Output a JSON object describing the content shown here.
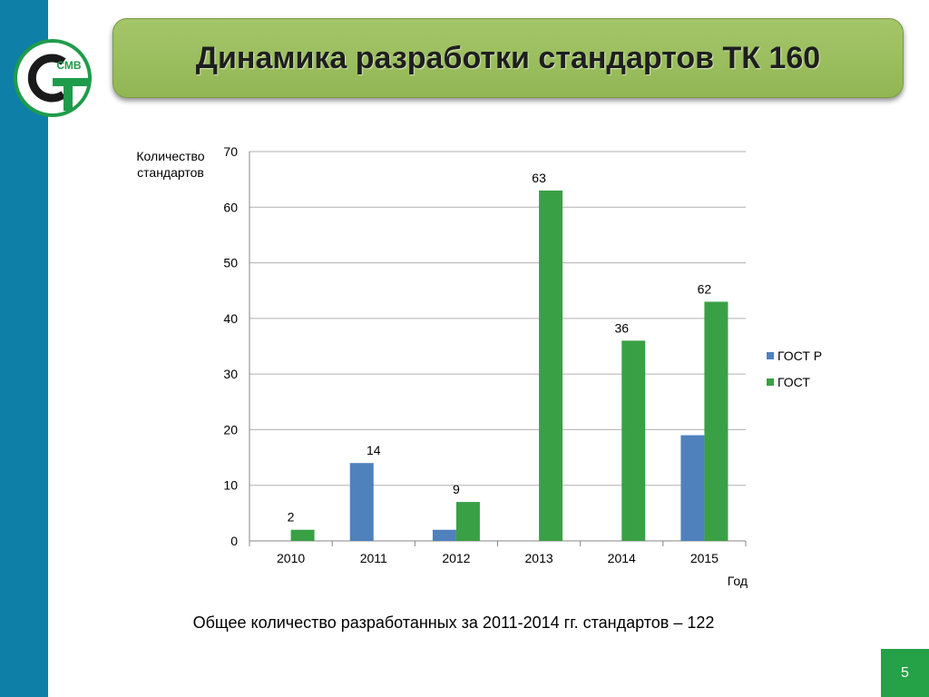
{
  "slide": {
    "title": "Динамика разработки стандартов ТК 160",
    "summary": "Общее количество разработанных за 2011-2014 гг. стандартов – 122",
    "page_number": "5",
    "logo_text": "СМВ"
  },
  "colors": {
    "sidebar": "#0e7fa6",
    "title_box": "#9bbd5b",
    "gost_r": "#4f81bd",
    "gost": "#3aa045",
    "page_box": "#25a147",
    "logo_green": "#1f9c4a"
  },
  "chart_data": {
    "type": "bar",
    "ylabel_lines": [
      "Количество",
      "стандартов"
    ],
    "xlabel": "Год",
    "categories": [
      "2010",
      "2011",
      "2012",
      "2013",
      "2014",
      "2015"
    ],
    "ylim": [
      0,
      70
    ],
    "yticks": [
      0,
      10,
      20,
      30,
      40,
      50,
      60,
      70
    ],
    "grid": true,
    "legend_position": "right",
    "series": [
      {
        "name": "ГОСТ Р",
        "values": [
          0,
          14,
          2,
          0,
          0,
          19
        ]
      },
      {
        "name": "ГОСТ",
        "values": [
          2,
          0,
          7,
          63,
          36,
          43
        ]
      }
    ],
    "data_labels": [
      "2",
      "14",
      "9",
      "63",
      "36",
      "62"
    ]
  }
}
